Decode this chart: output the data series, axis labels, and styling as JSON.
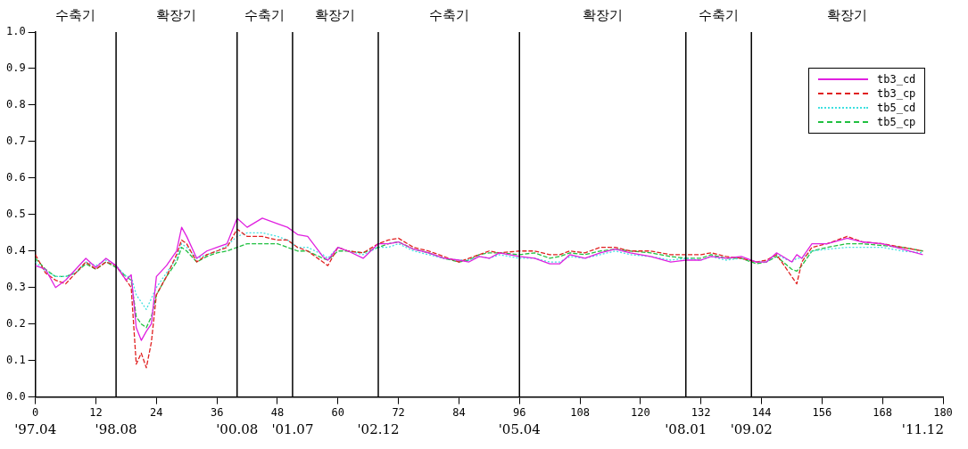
{
  "chart_data": {
    "type": "line",
    "x": [
      0,
      2,
      4,
      6,
      8,
      10,
      12,
      14,
      16,
      18,
      19,
      20,
      21,
      22,
      23,
      24,
      26,
      28,
      29,
      30,
      32,
      34,
      36,
      38,
      40,
      42,
      45,
      48,
      50,
      52,
      54,
      57,
      58,
      60,
      62,
      65,
      68,
      70,
      72,
      75,
      78,
      81,
      84,
      86,
      88,
      90,
      92,
      96,
      99,
      102,
      104,
      106,
      109,
      112,
      115,
      118,
      122,
      126,
      129,
      132,
      134,
      137,
      140,
      143,
      145,
      147,
      150,
      151,
      152,
      154,
      157,
      161,
      164,
      168,
      172,
      176
    ],
    "series": [
      {
        "name": "tb3_cd",
        "color": "#e020e0",
        "line_style": "solid",
        "values": [
          0.36,
          0.35,
          0.3,
          0.32,
          0.35,
          0.38,
          0.355,
          0.38,
          0.36,
          0.32,
          0.335,
          0.19,
          0.155,
          0.18,
          0.2,
          0.33,
          0.36,
          0.4,
          0.465,
          0.44,
          0.38,
          0.4,
          0.41,
          0.42,
          0.49,
          0.465,
          0.49,
          0.475,
          0.465,
          0.445,
          0.44,
          0.385,
          0.375,
          0.41,
          0.4,
          0.38,
          0.42,
          0.42,
          0.425,
          0.405,
          0.395,
          0.38,
          0.375,
          0.37,
          0.385,
          0.38,
          0.395,
          0.385,
          0.38,
          0.365,
          0.365,
          0.39,
          0.38,
          0.395,
          0.405,
          0.395,
          0.385,
          0.37,
          0.375,
          0.375,
          0.385,
          0.38,
          0.385,
          0.37,
          0.37,
          0.395,
          0.37,
          0.39,
          0.38,
          0.42,
          0.42,
          0.435,
          0.425,
          0.42,
          0.405,
          0.39
        ]
      },
      {
        "name": "tb3_cp",
        "color": "#e02020",
        "line_style": "dashed",
        "values": [
          0.39,
          0.34,
          0.32,
          0.31,
          0.34,
          0.37,
          0.35,
          0.37,
          0.36,
          0.32,
          0.3,
          0.09,
          0.12,
          0.08,
          0.15,
          0.28,
          0.33,
          0.39,
          0.43,
          0.42,
          0.37,
          0.39,
          0.4,
          0.41,
          0.46,
          0.44,
          0.44,
          0.43,
          0.43,
          0.41,
          0.4,
          0.37,
          0.36,
          0.41,
          0.4,
          0.395,
          0.42,
          0.43,
          0.435,
          0.41,
          0.4,
          0.385,
          0.37,
          0.38,
          0.39,
          0.4,
          0.395,
          0.4,
          0.4,
          0.39,
          0.39,
          0.4,
          0.395,
          0.41,
          0.41,
          0.4,
          0.4,
          0.39,
          0.39,
          0.39,
          0.395,
          0.385,
          0.38,
          0.37,
          0.375,
          0.39,
          0.33,
          0.31,
          0.37,
          0.41,
          0.42,
          0.44,
          0.425,
          0.42,
          0.41,
          0.4
        ]
      },
      {
        "name": "tb5_cd",
        "color": "#40e0e0",
        "line_style": "dotted",
        "values": [
          0.37,
          0.345,
          0.33,
          0.33,
          0.34,
          0.37,
          0.36,
          0.375,
          0.36,
          0.33,
          0.33,
          0.28,
          0.26,
          0.24,
          0.27,
          0.3,
          0.34,
          0.38,
          0.42,
          0.41,
          0.38,
          0.39,
          0.4,
          0.415,
          0.44,
          0.45,
          0.45,
          0.44,
          0.43,
          0.41,
          0.41,
          0.39,
          0.38,
          0.41,
          0.4,
          0.39,
          0.41,
          0.41,
          0.42,
          0.4,
          0.39,
          0.38,
          0.375,
          0.375,
          0.385,
          0.38,
          0.39,
          0.38,
          0.38,
          0.37,
          0.37,
          0.385,
          0.38,
          0.39,
          0.4,
          0.39,
          0.385,
          0.375,
          0.38,
          0.375,
          0.385,
          0.375,
          0.38,
          0.37,
          0.37,
          0.39,
          0.37,
          0.38,
          0.38,
          0.4,
          0.405,
          0.41,
          0.41,
          0.41,
          0.4,
          0.395
        ]
      },
      {
        "name": "tb5_cp",
        "color": "#20c040",
        "line_style": "dashed",
        "values": [
          0.38,
          0.35,
          0.33,
          0.33,
          0.34,
          0.365,
          0.35,
          0.37,
          0.355,
          0.33,
          0.32,
          0.22,
          0.2,
          0.19,
          0.22,
          0.28,
          0.33,
          0.37,
          0.41,
          0.4,
          0.37,
          0.385,
          0.395,
          0.4,
          0.41,
          0.42,
          0.42,
          0.42,
          0.41,
          0.4,
          0.4,
          0.38,
          0.375,
          0.4,
          0.4,
          0.395,
          0.41,
          0.42,
          0.425,
          0.405,
          0.395,
          0.38,
          0.37,
          0.375,
          0.39,
          0.395,
          0.395,
          0.39,
          0.395,
          0.38,
          0.385,
          0.395,
          0.39,
          0.4,
          0.405,
          0.4,
          0.395,
          0.385,
          0.38,
          0.38,
          0.39,
          0.38,
          0.38,
          0.365,
          0.37,
          0.385,
          0.35,
          0.345,
          0.36,
          0.4,
          0.41,
          0.42,
          0.42,
          0.415,
          0.41,
          0.4
        ]
      }
    ],
    "xlim": [
      0,
      180
    ],
    "xticks": [
      0,
      12,
      24,
      36,
      48,
      60,
      72,
      84,
      96,
      108,
      120,
      132,
      144,
      156,
      168,
      180
    ],
    "ylim": [
      0,
      1
    ],
    "yticks": [
      {
        "value": 0,
        "label": "0.0"
      },
      0.1,
      0.2,
      0.3,
      0.4,
      0.5,
      0.6,
      0.7,
      0.8,
      0.9,
      {
        "value": 1,
        "label": "1.0"
      }
    ],
    "grid": false,
    "legend": "top right",
    "marker": "none",
    "ref_lines": [
      {
        "axis": "x",
        "value": 16,
        "color": "#000000"
      },
      {
        "axis": "x",
        "value": 40,
        "color": "#000000"
      },
      {
        "axis": "x",
        "value": 51,
        "color": "#000000"
      },
      {
        "axis": "x",
        "value": 68,
        "color": "#000000"
      },
      {
        "axis": "x",
        "value": 96,
        "color": "#000000"
      },
      {
        "axis": "x",
        "value": 129,
        "color": "#000000"
      },
      {
        "axis": "x",
        "value": 142,
        "color": "#000000"
      }
    ],
    "annotations": [
      "수축기",
      "확장기",
      "수축기",
      "확장기",
      "수축기",
      "확장기",
      "수축기",
      "확장기",
      "'97.04",
      "'98.08",
      "'00.08",
      "'01.07",
      "'02.12",
      "'05.04",
      "'08.01",
      "'09.02",
      "'11.12"
    ]
  }
}
